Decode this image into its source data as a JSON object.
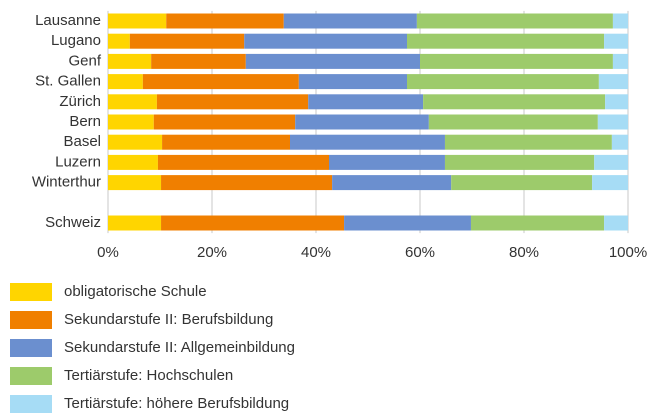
{
  "chart_data": {
    "type": "bar",
    "orientation": "horizontal",
    "stacked": true,
    "categories": [
      "Lausanne",
      "Lugano",
      "Genf",
      "St. Gallen",
      "Zürich",
      "Bern",
      "Basel",
      "Luzern",
      "Winterthur",
      null,
      "Schweiz"
    ],
    "series": [
      {
        "name": "obligatorische Schule",
        "color": "#ffd500",
        "values": [
          11.2,
          4.2,
          8.3,
          6.7,
          9.4,
          8.8,
          10.4,
          9.6,
          10.2,
          null,
          10.2
        ]
      },
      {
        "name": "Sekundarstufe II: Berufsbildung",
        "color": "#f07f00",
        "values": [
          22.6,
          22.0,
          18.2,
          30.0,
          29.1,
          27.2,
          24.6,
          32.9,
          32.9,
          null,
          35.2
        ]
      },
      {
        "name": "Sekundarstufe II: Allgemeinbildung",
        "color": "#6b8fcf",
        "values": [
          25.6,
          31.3,
          33.5,
          20.8,
          22.1,
          25.7,
          29.8,
          22.3,
          22.9,
          null,
          24.4
        ]
      },
      {
        "name": "Tertiärstufe: Hochschulen",
        "color": "#9dcb6b",
        "values": [
          37.7,
          37.9,
          37.1,
          36.9,
          35.0,
          32.5,
          32.1,
          28.7,
          27.1,
          null,
          25.6
        ]
      },
      {
        "name": "Tertiärstufe: höhere Berufsbildung",
        "color": "#a6dcf5",
        "values": [
          2.9,
          4.6,
          2.9,
          5.6,
          4.4,
          5.8,
          3.1,
          6.5,
          6.9,
          null,
          4.6
        ]
      }
    ],
    "xlim": [
      0,
      100
    ],
    "xticks": [
      {
        "value": 0,
        "label": "0%"
      },
      {
        "value": 20,
        "label": "20%"
      },
      {
        "value": 40,
        "label": "40%"
      },
      {
        "value": 60,
        "label": "60%"
      },
      {
        "value": 80,
        "label": "80%"
      },
      {
        "value": 100,
        "label": "100%"
      }
    ],
    "grid": true,
    "legend": "bottom"
  }
}
